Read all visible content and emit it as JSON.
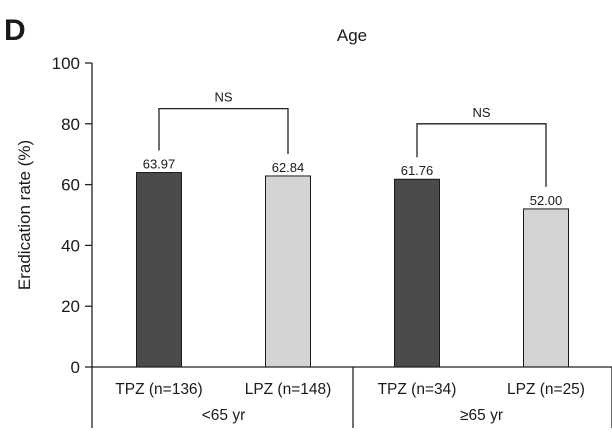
{
  "panel_label": "D",
  "chart_data": {
    "type": "bar",
    "title": "Age",
    "xlabel": "",
    "ylabel": "Eradication rate (%)",
    "ylim": [
      0,
      100
    ],
    "yticks": [
      0,
      20,
      40,
      60,
      80,
      100
    ],
    "grid": false,
    "legend": "none",
    "categories": [
      "TPZ (n=136)",
      "LPZ (n=148)",
      "TPZ (n=34)",
      "LPZ (n=25)"
    ],
    "values": [
      63.97,
      62.84,
      61.76,
      52.0
    ],
    "value_labels": [
      "63.97",
      "62.84",
      "61.76",
      "52.00"
    ],
    "bar_colors": [
      "#4b4b4b",
      "#d3d3d3",
      "#4b4b4b",
      "#d3d3d3"
    ],
    "groups": [
      {
        "label": "<65 yr",
        "members": [
          0,
          1
        ]
      },
      {
        "label": "≥65 yr",
        "members": [
          2,
          3
        ]
      }
    ],
    "annotations": [
      {
        "text": "NS",
        "between": [
          0,
          1
        ],
        "y": 85
      },
      {
        "text": "NS",
        "between": [
          2,
          3
        ],
        "y": 80
      }
    ]
  }
}
